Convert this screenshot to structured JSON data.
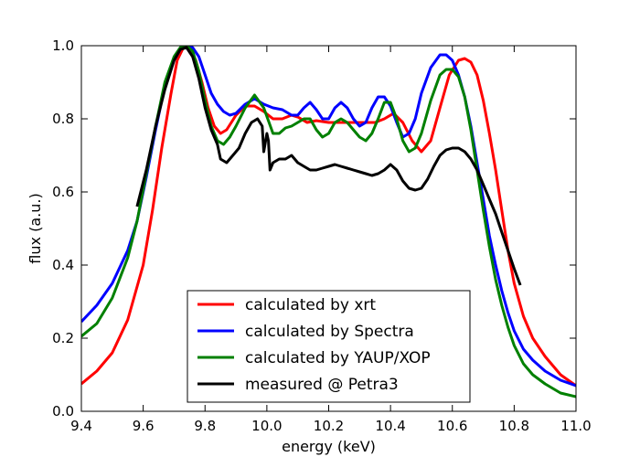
{
  "chart_data": {
    "type": "line",
    "title": "",
    "xlabel": "energy (keV)",
    "ylabel": "flux (a.u.)",
    "xlim": [
      9.4,
      11.0
    ],
    "ylim": [
      0.0,
      1.0
    ],
    "x_ticks": [
      "9.4",
      "9.6",
      "9.8",
      "10.0",
      "10.2",
      "10.4",
      "10.6",
      "10.8",
      "11.0"
    ],
    "y_ticks": [
      "0.0",
      "0.2",
      "0.4",
      "0.6",
      "0.8",
      "1.0"
    ],
    "grid": false,
    "legend": "lower center",
    "series": [
      {
        "name": "calculated by xrt",
        "color": "#ff0000",
        "x": [
          9.4,
          9.45,
          9.5,
          9.55,
          9.6,
          9.63,
          9.66,
          9.69,
          9.71,
          9.73,
          9.75,
          9.77,
          9.79,
          9.81,
          9.83,
          9.85,
          9.87,
          9.9,
          9.93,
          9.96,
          9.99,
          10.02,
          10.05,
          10.08,
          10.1,
          10.13,
          10.16,
          10.2,
          10.24,
          10.28,
          10.32,
          10.35,
          10.38,
          10.41,
          10.44,
          10.47,
          10.5,
          10.53,
          10.56,
          10.59,
          10.62,
          10.64,
          10.66,
          10.68,
          10.7,
          10.72,
          10.74,
          10.76,
          10.78,
          10.8,
          10.83,
          10.86,
          10.9,
          10.95,
          11.0
        ],
        "y": [
          0.075,
          0.11,
          0.16,
          0.25,
          0.4,
          0.55,
          0.72,
          0.87,
          0.96,
          0.995,
          0.995,
          0.96,
          0.9,
          0.83,
          0.78,
          0.76,
          0.77,
          0.81,
          0.835,
          0.835,
          0.82,
          0.8,
          0.8,
          0.81,
          0.805,
          0.79,
          0.795,
          0.79,
          0.79,
          0.79,
          0.79,
          0.79,
          0.8,
          0.815,
          0.79,
          0.74,
          0.71,
          0.74,
          0.83,
          0.92,
          0.96,
          0.965,
          0.955,
          0.92,
          0.85,
          0.76,
          0.66,
          0.55,
          0.44,
          0.35,
          0.26,
          0.2,
          0.15,
          0.1,
          0.07
        ]
      },
      {
        "name": "calculated by Spectra",
        "color": "#0000ff",
        "x": [
          9.4,
          9.45,
          9.5,
          9.55,
          9.58,
          9.61,
          9.64,
          9.67,
          9.7,
          9.72,
          9.74,
          9.76,
          9.78,
          9.8,
          9.82,
          9.84,
          9.86,
          9.88,
          9.9,
          9.93,
          9.96,
          9.99,
          10.02,
          10.05,
          10.08,
          10.1,
          10.12,
          10.14,
          10.16,
          10.18,
          10.2,
          10.22,
          10.24,
          10.26,
          10.28,
          10.3,
          10.32,
          10.34,
          10.36,
          10.38,
          10.4,
          10.42,
          10.44,
          10.46,
          10.48,
          10.5,
          10.53,
          10.56,
          10.58,
          10.6,
          10.62,
          10.64,
          10.66,
          10.68,
          10.7,
          10.72,
          10.74,
          10.76,
          10.78,
          10.8,
          10.83,
          10.86,
          10.9,
          10.95,
          11.0
        ],
        "y": [
          0.245,
          0.29,
          0.35,
          0.44,
          0.52,
          0.64,
          0.77,
          0.89,
          0.96,
          0.99,
          1.0,
          0.995,
          0.97,
          0.92,
          0.87,
          0.84,
          0.82,
          0.81,
          0.815,
          0.84,
          0.855,
          0.84,
          0.83,
          0.825,
          0.81,
          0.81,
          0.83,
          0.845,
          0.825,
          0.8,
          0.8,
          0.83,
          0.845,
          0.83,
          0.8,
          0.78,
          0.79,
          0.83,
          0.86,
          0.86,
          0.835,
          0.79,
          0.75,
          0.76,
          0.8,
          0.87,
          0.94,
          0.975,
          0.975,
          0.96,
          0.92,
          0.86,
          0.78,
          0.68,
          0.58,
          0.48,
          0.4,
          0.33,
          0.27,
          0.22,
          0.17,
          0.14,
          0.11,
          0.085,
          0.07
        ]
      },
      {
        "name": "calculated by YAUP/XOP",
        "color": "#008000",
        "x": [
          9.4,
          9.45,
          9.5,
          9.55,
          9.58,
          9.61,
          9.64,
          9.67,
          9.7,
          9.72,
          9.74,
          9.76,
          9.78,
          9.8,
          9.82,
          9.84,
          9.86,
          9.88,
          9.9,
          9.93,
          9.96,
          9.99,
          10.02,
          10.04,
          10.06,
          10.08,
          10.1,
          10.12,
          10.14,
          10.16,
          10.18,
          10.2,
          10.22,
          10.24,
          10.26,
          10.28,
          10.3,
          10.32,
          10.34,
          10.36,
          10.38,
          10.4,
          10.42,
          10.44,
          10.46,
          10.48,
          10.5,
          10.53,
          10.56,
          10.58,
          10.6,
          10.62,
          10.64,
          10.66,
          10.68,
          10.7,
          10.72,
          10.74,
          10.76,
          10.78,
          10.8,
          10.83,
          10.86,
          10.9,
          10.95,
          11.0
        ],
        "y": [
          0.205,
          0.24,
          0.31,
          0.42,
          0.52,
          0.65,
          0.78,
          0.9,
          0.97,
          0.995,
          1.0,
          0.985,
          0.93,
          0.85,
          0.78,
          0.74,
          0.73,
          0.75,
          0.78,
          0.83,
          0.865,
          0.83,
          0.76,
          0.76,
          0.775,
          0.78,
          0.79,
          0.8,
          0.8,
          0.77,
          0.75,
          0.76,
          0.79,
          0.8,
          0.79,
          0.77,
          0.75,
          0.74,
          0.76,
          0.8,
          0.845,
          0.845,
          0.8,
          0.74,
          0.71,
          0.72,
          0.76,
          0.85,
          0.92,
          0.935,
          0.935,
          0.915,
          0.86,
          0.77,
          0.66,
          0.55,
          0.45,
          0.36,
          0.29,
          0.23,
          0.18,
          0.13,
          0.1,
          0.075,
          0.05,
          0.04
        ]
      },
      {
        "name": "measured @ Petra3",
        "color": "#000000",
        "x": [
          9.58,
          9.61,
          9.64,
          9.67,
          9.7,
          9.72,
          9.74,
          9.76,
          9.78,
          9.8,
          9.82,
          9.84,
          9.85,
          9.87,
          9.89,
          9.91,
          9.93,
          9.95,
          9.97,
          9.985,
          9.99,
          10.0,
          10.005,
          10.01,
          10.02,
          10.04,
          10.06,
          10.08,
          10.1,
          10.12,
          10.14,
          10.16,
          10.18,
          10.2,
          10.22,
          10.24,
          10.26,
          10.28,
          10.3,
          10.32,
          10.34,
          10.36,
          10.38,
          10.4,
          10.42,
          10.44,
          10.46,
          10.48,
          10.5,
          10.52,
          10.54,
          10.56,
          10.58,
          10.6,
          10.62,
          10.64,
          10.66,
          10.68,
          10.7,
          10.72,
          10.74,
          10.76,
          10.78,
          10.8,
          10.82
        ],
        "y": [
          0.56,
          0.66,
          0.78,
          0.88,
          0.96,
          0.99,
          0.995,
          0.97,
          0.91,
          0.83,
          0.77,
          0.73,
          0.69,
          0.68,
          0.7,
          0.72,
          0.76,
          0.79,
          0.8,
          0.78,
          0.71,
          0.76,
          0.74,
          0.66,
          0.68,
          0.69,
          0.69,
          0.7,
          0.68,
          0.67,
          0.66,
          0.66,
          0.665,
          0.67,
          0.675,
          0.67,
          0.665,
          0.66,
          0.655,
          0.65,
          0.645,
          0.65,
          0.66,
          0.675,
          0.66,
          0.63,
          0.61,
          0.605,
          0.61,
          0.635,
          0.67,
          0.7,
          0.715,
          0.72,
          0.72,
          0.71,
          0.69,
          0.66,
          0.62,
          0.58,
          0.54,
          0.49,
          0.44,
          0.39,
          0.345
        ]
      }
    ]
  }
}
